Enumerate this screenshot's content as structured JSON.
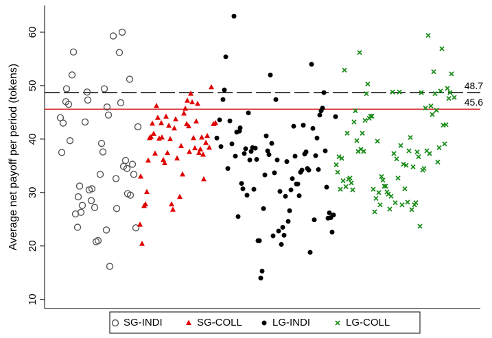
{
  "chart_data": {
    "type": "scatter",
    "y_label": "Average net payoff per period (tokens)",
    "ylim": [
      8.3,
      65
    ],
    "yticks": [
      10,
      20,
      30,
      40,
      50,
      60
    ],
    "xlim": [
      65,
      700
    ],
    "grid": false,
    "legend_position": "bottom",
    "reference_lines": [
      {
        "value": 48.7,
        "color": "#000000",
        "style": "dashed"
      },
      {
        "value": 45.6,
        "color": "#d62728",
        "style": "solid"
      }
    ],
    "series": [
      {
        "name": "SG-INDI",
        "color": "#555555",
        "marker": "hollow-circle",
        "x": [
          88,
          92,
          90,
          107,
          105,
          97,
          96,
          100,
          102,
          110,
          113,
          116,
          114,
          120,
          118,
          124,
          127,
          128,
          130,
          134,
          133,
          138,
          140,
          143,
          146,
          148,
          150,
          152,
          156,
          158,
          155,
          160,
          165,
          169,
          170,
          174,
          176,
          178,
          180,
          183,
          185,
          186,
          189,
          190,
          193,
          195,
          198,
          201
        ],
        "values": [
          44,
          43,
          37.5,
          56.3,
          52,
          49.4,
          47,
          46.5,
          39.7,
          26,
          23.5,
          31.2,
          29.2,
          27.6,
          26.3,
          43.2,
          48.8,
          47.3,
          30.5,
          30.7,
          28.5,
          27.2,
          20.8,
          21,
          33.4,
          39.2,
          37.6,
          49.4,
          46,
          44.5,
          23,
          16.2,
          59.3,
          32.6,
          27,
          56.2,
          46.8,
          60,
          34.9,
          36,
          34.5,
          29.8,
          51.2,
          29.5,
          35.3,
          33.4,
          23.4,
          42.3
        ]
      },
      {
        "name": "SG-COLL",
        "color": "#e00000",
        "marker": "triangle",
        "x": [
          204,
          207,
          205,
          210,
          212,
          214,
          216,
          218,
          220,
          222,
          224,
          226,
          228,
          230,
          232,
          235,
          236,
          238,
          240,
          242,
          244,
          246,
          248,
          250,
          252,
          254,
          256,
          258,
          262,
          264,
          266,
          268,
          270,
          272,
          273,
          275,
          276,
          278,
          280,
          282,
          284,
          286,
          288,
          290,
          292,
          294,
          296,
          297,
          300,
          302,
          305,
          308,
          311,
          314
        ],
        "values": [
          24,
          20.4,
          33,
          27.5,
          27.8,
          30.1,
          36,
          40.2,
          40.4,
          42.9,
          41,
          37.3,
          46.2,
          44,
          40.1,
          43,
          40.3,
          36.1,
          35.5,
          44.2,
          37.4,
          42.5,
          40,
          27.8,
          26.8,
          42,
          43.7,
          36.4,
          29.2,
          38.7,
          33.4,
          44.8,
          45.7,
          42.8,
          47.2,
          42.4,
          37.6,
          48.5,
          46.9,
          40.2,
          38.3,
          43.3,
          46.6,
          37.4,
          38.1,
          40.3,
          37.1,
          32.5,
          39.3,
          40.6,
          38.4,
          49.7,
          42.8,
          43
        ]
      },
      {
        "name": "LG-INDI",
        "color": "#000000",
        "marker": "dot",
        "x": [
          316,
          320,
          322,
          325,
          327,
          329,
          332,
          335,
          338,
          341,
          343,
          345,
          347,
          349,
          350,
          352,
          354,
          356,
          358,
          360,
          362,
          364,
          366,
          368,
          370,
          372,
          374,
          376,
          378,
          380,
          382,
          384,
          386,
          388,
          390,
          392,
          394,
          396,
          398,
          400,
          402,
          404,
          406,
          408,
          410,
          412,
          414,
          416,
          418,
          420,
          422,
          424,
          426,
          428,
          430,
          432,
          434,
          436,
          438,
          440,
          442,
          444,
          446,
          448,
          450,
          452,
          454,
          456,
          458,
          460,
          462,
          464,
          466,
          468,
          470,
          472,
          474,
          476,
          478,
          480,
          482,
          484,
          486,
          489
        ],
        "values": [
          40.2,
          43.6,
          38.6,
          47.4,
          49.2,
          55.4,
          34.5,
          43.4,
          39.1,
          63,
          36.8,
          41.3,
          25.5,
          41.5,
          42.1,
          31.7,
          30.7,
          37.3,
          38.2,
          29.5,
          44.9,
          36.1,
          37.7,
          38.4,
          30.6,
          38.3,
          36.2,
          21,
          21,
          14,
          15.3,
          27,
          33.3,
          40.6,
          37.8,
          37.1,
          52,
          39.2,
          21.9,
          33.7,
          47.4,
          36.1,
          22.8,
          30.2,
          20.3,
          23.5,
          22,
          29.3,
          35.8,
          24.6,
          26.6,
          30.5,
          32.6,
          42.4,
          36.8,
          31.6,
          31.6,
          29.4,
          33.8,
          34.2,
          42.6,
          37.2,
          37.6,
          34.5,
          34.2,
          18.8,
          54,
          42,
          24.9,
          36.9,
          40.2,
          34.3,
          44.5,
          45.3,
          45.8,
          48.7,
          37.8,
          31,
          25.2,
          26.2,
          25.3,
          22.6,
          25.8,
          44.2
        ]
      },
      {
        "name": "LG-COLL",
        "color": "#1a8c1a",
        "marker": "cross",
        "x": [
          490,
          492,
          494,
          496,
          498,
          500,
          502,
          504,
          506,
          508,
          510,
          512,
          514,
          516,
          518,
          520,
          522,
          524,
          526,
          528,
          530,
          532,
          534,
          536,
          538,
          540,
          542,
          544,
          546,
          548,
          550,
          552,
          554,
          556,
          558,
          560,
          562,
          564,
          566,
          568,
          570,
          572,
          574,
          576,
          578,
          580,
          582,
          584,
          586,
          588,
          590,
          592,
          594,
          596,
          598,
          600,
          602,
          604,
          606,
          608,
          610,
          612,
          614,
          616,
          618,
          620,
          622,
          624,
          626,
          628,
          630,
          632,
          634,
          636,
          638,
          640,
          642,
          644,
          646,
          648,
          650,
          652,
          654,
          656,
          658,
          662
        ],
        "values": [
          35.2,
          33.8,
          36.7,
          30.6,
          36.4,
          32.2,
          52.9,
          31.1,
          41.1,
          32.5,
          32.7,
          31.8,
          30.5,
          43.2,
          45.3,
          39.7,
          37.7,
          56.2,
          38.1,
          41.1,
          37.7,
          43.5,
          48.5,
          50.3,
          43.9,
          44.3,
          44.3,
          30.6,
          26.4,
          28.9,
          39.6,
          30,
          27.7,
          33,
          32.3,
          31.2,
          31.2,
          30.1,
          29.7,
          26.9,
          29.3,
          48.8,
          37.3,
          28.1,
          36.3,
          32.7,
          48.8,
          38.8,
          27.7,
          35.3,
          30.7,
          35.1,
          28.2,
          37.8,
          40.3,
          26.8,
          34.8,
          27.7,
          28.1,
          37.6,
          36.7,
          23.7,
          48.7,
          34.2,
          34.5,
          45.8,
          37.8,
          59.4,
          37.3,
          46.2,
          44.6,
          52.6,
          48.5,
          45.4,
          35.7,
          38.4,
          49,
          56.9,
          42.6,
          39.1,
          42.7,
          49.5,
          47.6,
          48.7,
          52.2,
          47.8
        ]
      }
    ]
  }
}
